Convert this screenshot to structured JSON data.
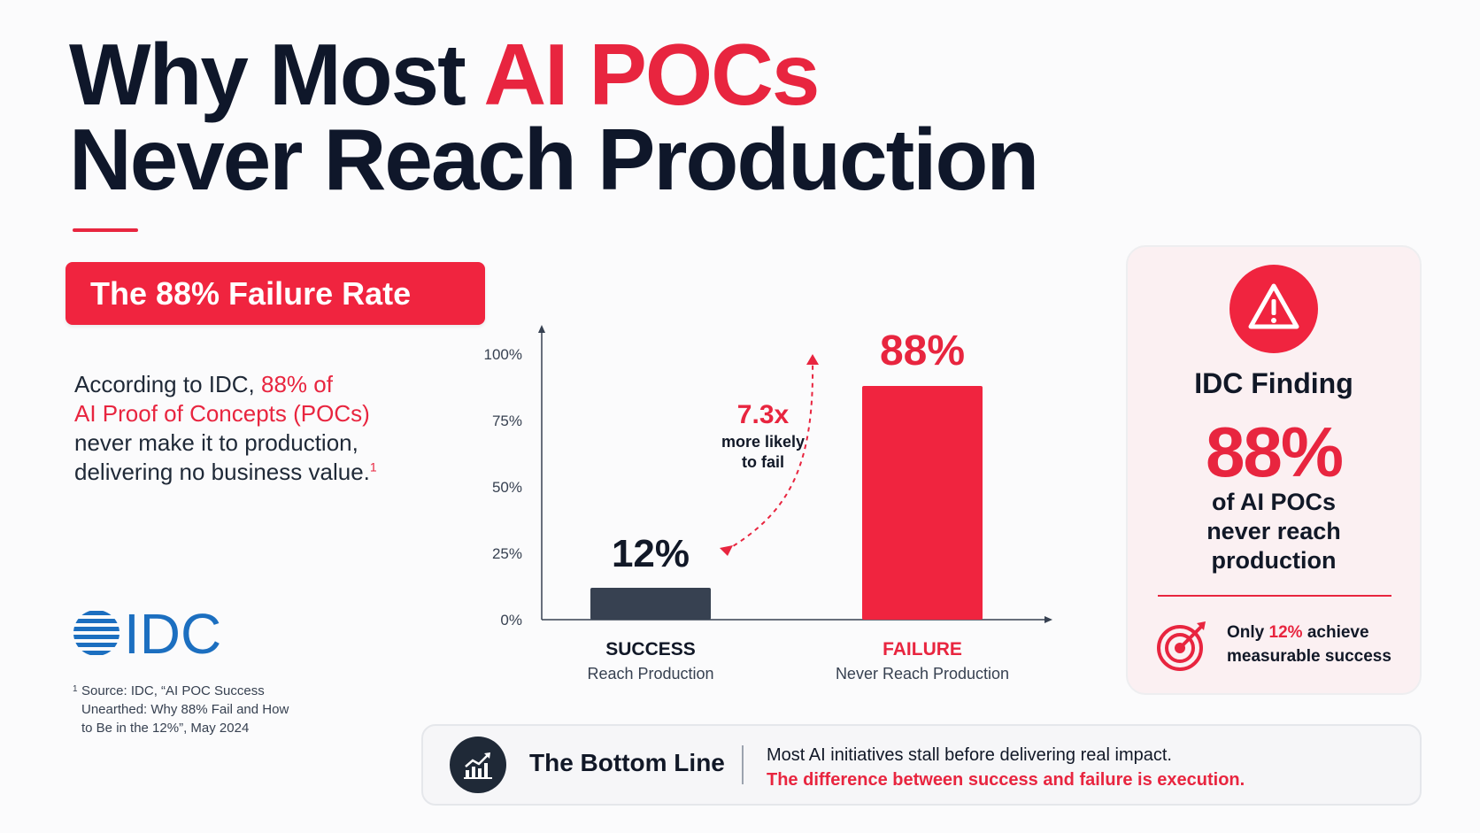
{
  "title": {
    "part1": "Why Most ",
    "accent": "AI POCs",
    "line2": "Never Reach Production"
  },
  "badge": "The 88% Failure Rate",
  "intro": {
    "pre": "According to IDC, ",
    "highlight1": "88% of",
    "highlight2": "AI Proof of Concepts (POCs)",
    "post": " never make it to production, delivering no business value.",
    "footnote_mark": "1"
  },
  "logo": "IDC",
  "source": {
    "mark": "1",
    "text": "Source: IDC, “AI POC Success Unearthed: Why 88% Fail and How to Be in the 12%”, May 2024"
  },
  "chart_data": {
    "type": "bar",
    "categories": [
      "SUCCESS",
      "FAILURE"
    ],
    "sublabels": [
      "Reach Production",
      "Never Reach Production"
    ],
    "values": [
      12,
      88
    ],
    "value_labels": [
      "12%",
      "88%"
    ],
    "yticks": [
      "0%",
      "25%",
      "50%",
      "75%",
      "100%"
    ],
    "ylim": [
      0,
      100
    ],
    "colors": [
      "#374151",
      "#f0243f"
    ],
    "label_colors": [
      "#111827",
      "#e8253f"
    ],
    "annotation": {
      "value": "7.3x",
      "line1": "more likely",
      "line2": "to fail"
    }
  },
  "finding": {
    "title": "IDC Finding",
    "percent": "88%",
    "desc_lines": [
      "of AI POCs",
      "never reach",
      "production"
    ],
    "note_pre": "Only ",
    "note_hl": "12%",
    "note_post": " achieve",
    "note_line2": "measurable success"
  },
  "bottom": {
    "title": "The Bottom Line",
    "line1": "Most AI initiatives stall before delivering real impact.",
    "line2": "The difference between success and failure is execution."
  },
  "colors": {
    "accent": "#e8253f",
    "dark": "#0f172a",
    "idc_blue": "#1c6fc0"
  }
}
